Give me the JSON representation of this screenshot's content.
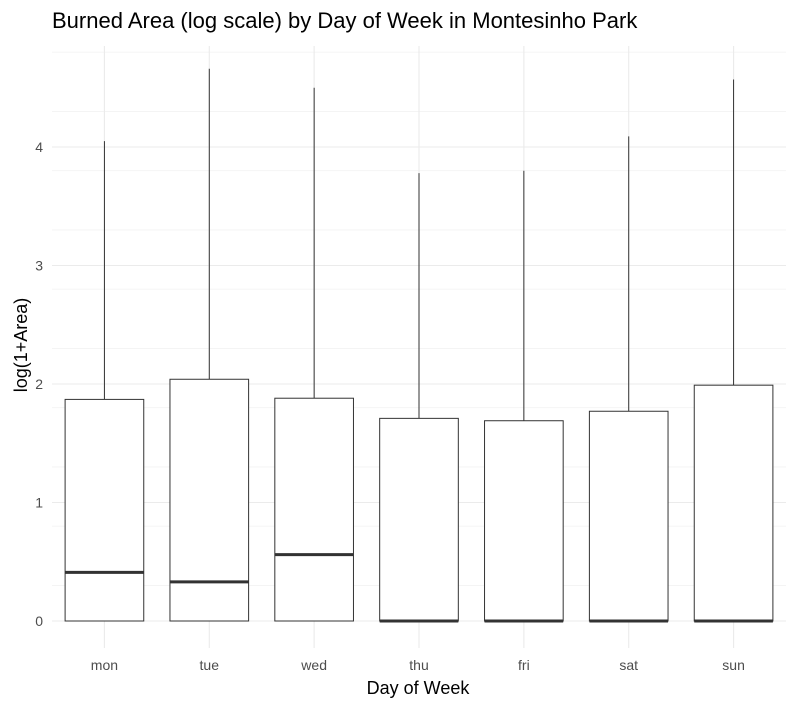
{
  "chart_data": {
    "type": "boxplot",
    "title": "Burned Area (log scale) by Day of Week in Montesinho Park",
    "xlabel": "Day of Week",
    "ylabel": "log(1+Area)",
    "categories": [
      "mon",
      "tue",
      "wed",
      "thu",
      "fri",
      "sat",
      "sun"
    ],
    "ylim": [
      -0.2,
      4.9
    ],
    "yticks": [
      0,
      1,
      2,
      3,
      4
    ],
    "grid": true,
    "boxes": [
      {
        "category": "mon",
        "min": 0,
        "q1": 0,
        "median": 0.41,
        "q3": 1.87,
        "max": 4.05
      },
      {
        "category": "tue",
        "min": 0,
        "q1": 0,
        "median": 0.33,
        "q3": 2.04,
        "max": 4.66
      },
      {
        "category": "wed",
        "min": 0,
        "q1": 0,
        "median": 0.56,
        "q3": 1.88,
        "max": 4.5
      },
      {
        "category": "thu",
        "min": 0,
        "q1": 0,
        "median": 0,
        "q3": 1.71,
        "max": 3.78
      },
      {
        "category": "fri",
        "min": 0,
        "q1": 0,
        "median": 0,
        "q3": 1.69,
        "max": 3.8
      },
      {
        "category": "sat",
        "min": 0,
        "q1": 0,
        "median": 0,
        "q3": 1.77,
        "max": 4.09
      },
      {
        "category": "sun",
        "min": 0,
        "q1": 0,
        "median": 0,
        "q3": 1.99,
        "max": 4.57
      }
    ]
  }
}
